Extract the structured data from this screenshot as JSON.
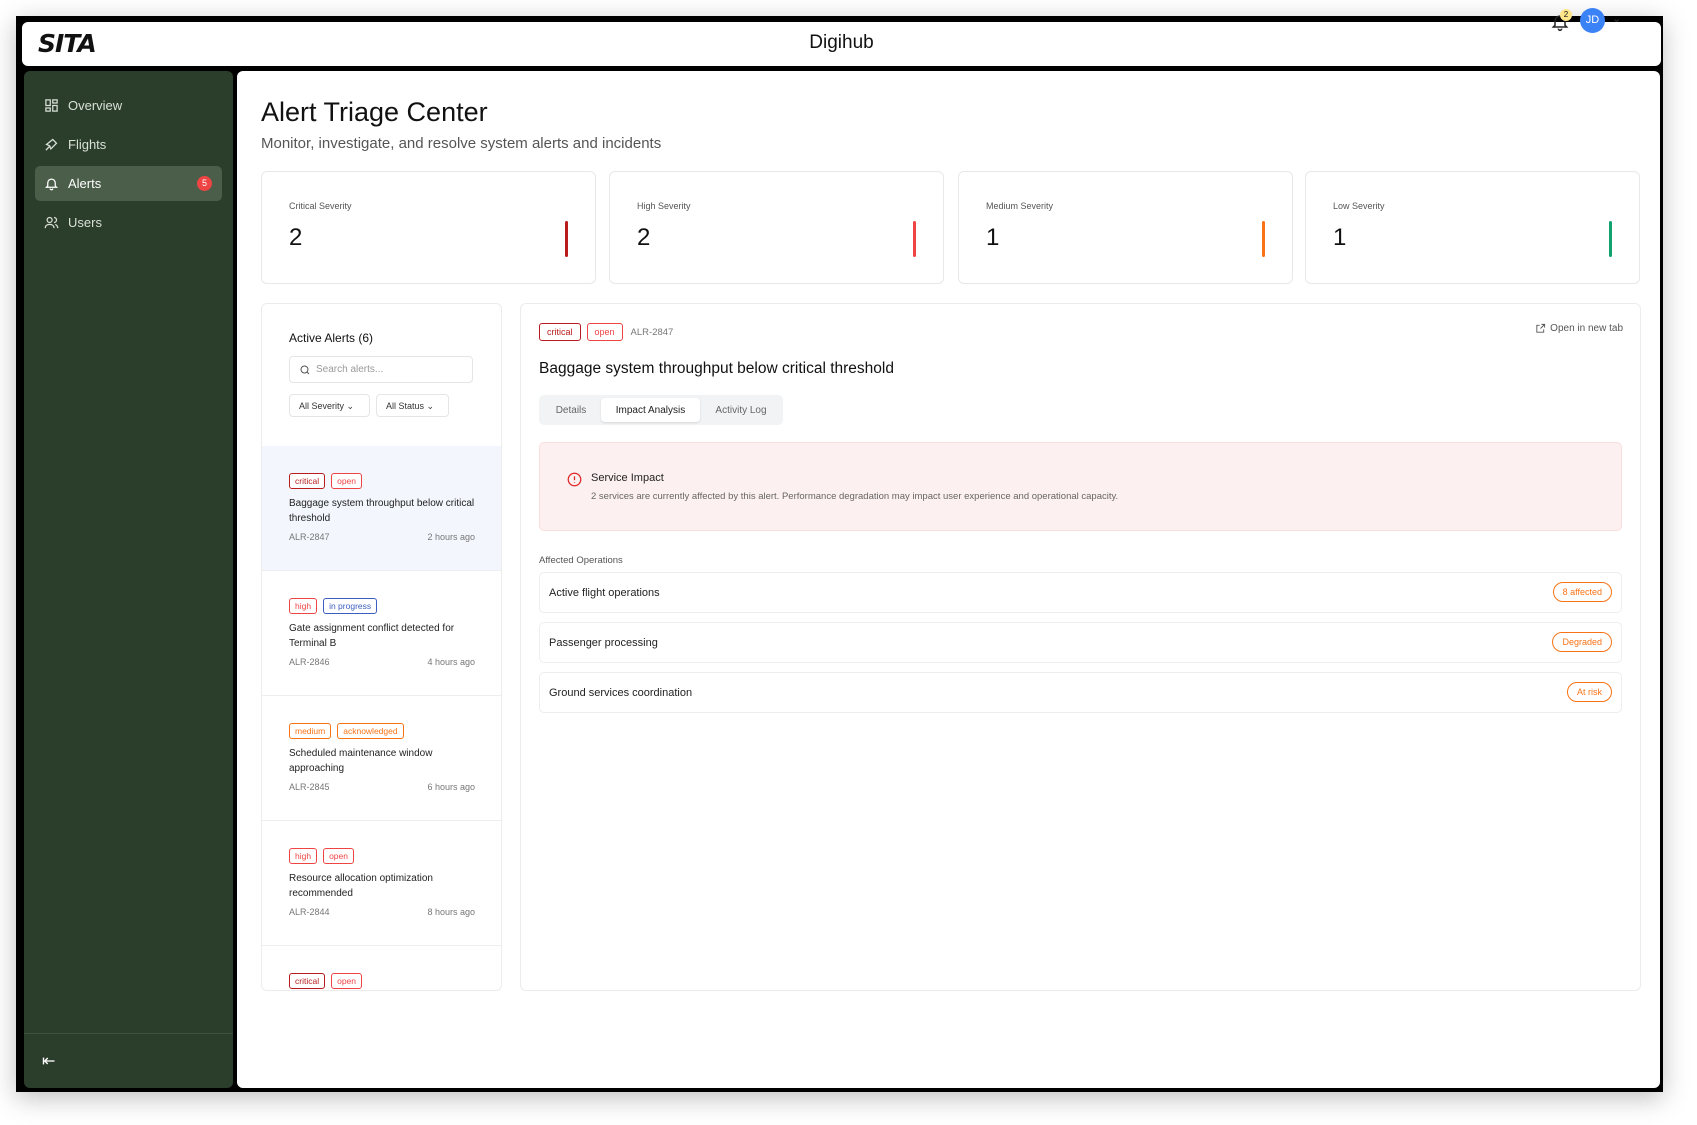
{
  "header": {
    "logo": "SITA",
    "app_title": "Digihub",
    "notification_count": "2",
    "avatar_initials": "JD"
  },
  "sidebar": {
    "items": [
      {
        "label": "Overview",
        "icon": "grid-icon"
      },
      {
        "label": "Flights",
        "icon": "plane-icon"
      },
      {
        "label": "Alerts",
        "icon": "bell-icon",
        "badge": "5",
        "active": true
      },
      {
        "label": "Users",
        "icon": "users-icon"
      }
    ]
  },
  "page": {
    "title": "Alert Triage Center",
    "subtitle": "Monitor, investigate, and resolve system alerts and incidents"
  },
  "cards": [
    {
      "label": "Critical Severity",
      "value": "2",
      "color": "#b91c1c"
    },
    {
      "label": "High Severity",
      "value": "2",
      "color": "#ef4444"
    },
    {
      "label": "Medium Severity",
      "value": "1",
      "color": "#f97316"
    },
    {
      "label": "Low Severity",
      "value": "1",
      "color": "#10a36f"
    }
  ],
  "alerts_panel": {
    "title": "Active Alerts (6)",
    "search_placeholder": "Search alerts...",
    "filter_severity": "All Severity",
    "filter_status": "All Status",
    "items": [
      {
        "severity": "critical",
        "status": "open",
        "title": "Baggage system throughput below critical threshold",
        "id": "ALR-2847",
        "time": "2 hours ago",
        "selected": true
      },
      {
        "severity": "high",
        "status": "in progress",
        "title": "Gate assignment conflict detected for Terminal B",
        "id": "ALR-2846",
        "time": "4 hours ago"
      },
      {
        "severity": "medium",
        "status": "acknowledged",
        "title": "Scheduled maintenance window approaching",
        "id": "ALR-2845",
        "time": "6 hours ago"
      },
      {
        "severity": "high",
        "status": "open",
        "title": "Resource allocation optimization recommended",
        "id": "ALR-2844",
        "time": "8 hours ago"
      },
      {
        "severity": "critical",
        "status": "open"
      }
    ]
  },
  "detail": {
    "severity": "critical",
    "status": "open",
    "id": "ALR-2847",
    "open_new_tab": "Open in new tab",
    "title": "Baggage system throughput below critical threshold",
    "tabs": [
      "Details",
      "Impact Analysis",
      "Activity Log"
    ],
    "active_tab": "Impact Analysis",
    "impact": {
      "title": "Service Impact",
      "description": "2 services are currently affected by this alert. Performance degradation may impact user experience and operational capacity."
    },
    "affected_label": "Affected Operations",
    "operations": [
      {
        "name": "Active flight operations",
        "badge": "8 affected"
      },
      {
        "name": "Passenger processing",
        "badge": "Degraded"
      },
      {
        "name": "Ground services coordination",
        "badge": "At risk"
      }
    ]
  }
}
